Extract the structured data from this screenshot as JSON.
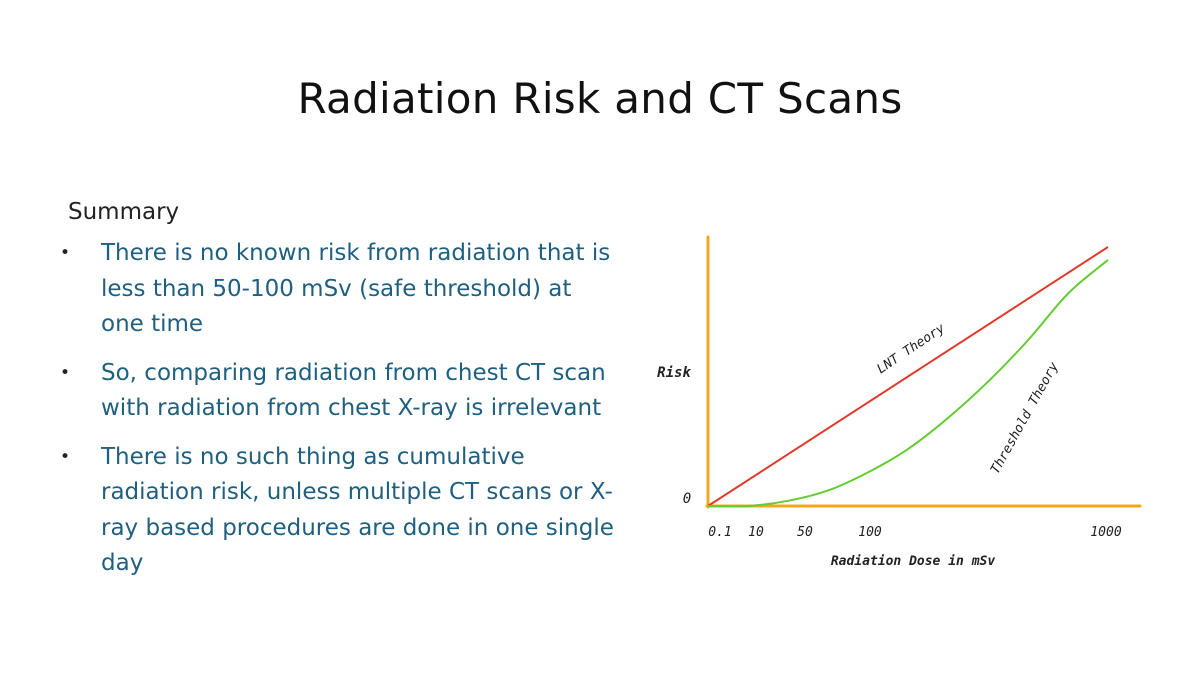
{
  "slide": {
    "title": "Radiation Risk and CT Scans",
    "summary_heading": "Summary",
    "bullets": [
      "There is no known risk from radiation that is less than 50-100 mSv (safe threshold) at one time",
      "So, comparing radiation from chest CT scan with radiation from chest X-ray is irrelevant",
      "There is no such thing as cumulative radiation risk, unless multiple CT scans or X-ray based procedures are done in one single day"
    ],
    "bullet_marker": "•"
  },
  "chart_data": {
    "type": "line",
    "xlabel": "Radiation Dose in mSv",
    "ylabel": "Risk",
    "x_ticks": [
      "0.1",
      "10",
      "50",
      "100",
      "1000"
    ],
    "y_ticks": [
      "0"
    ],
    "series": [
      {
        "name": "LNT Theory",
        "color": "#e03a2b",
        "x": [
          0,
          1000
        ],
        "y": [
          0,
          1
        ]
      },
      {
        "name": "Threshold Theory",
        "color": "#66cc33",
        "x": [
          0,
          100,
          200,
          300,
          400,
          500,
          600,
          700,
          800,
          900,
          1000
        ],
        "y": [
          0,
          0,
          0.02,
          0.06,
          0.13,
          0.22,
          0.34,
          0.48,
          0.64,
          0.82,
          0.95
        ]
      }
    ],
    "axis_color": "#f2a81d",
    "grid": false
  }
}
